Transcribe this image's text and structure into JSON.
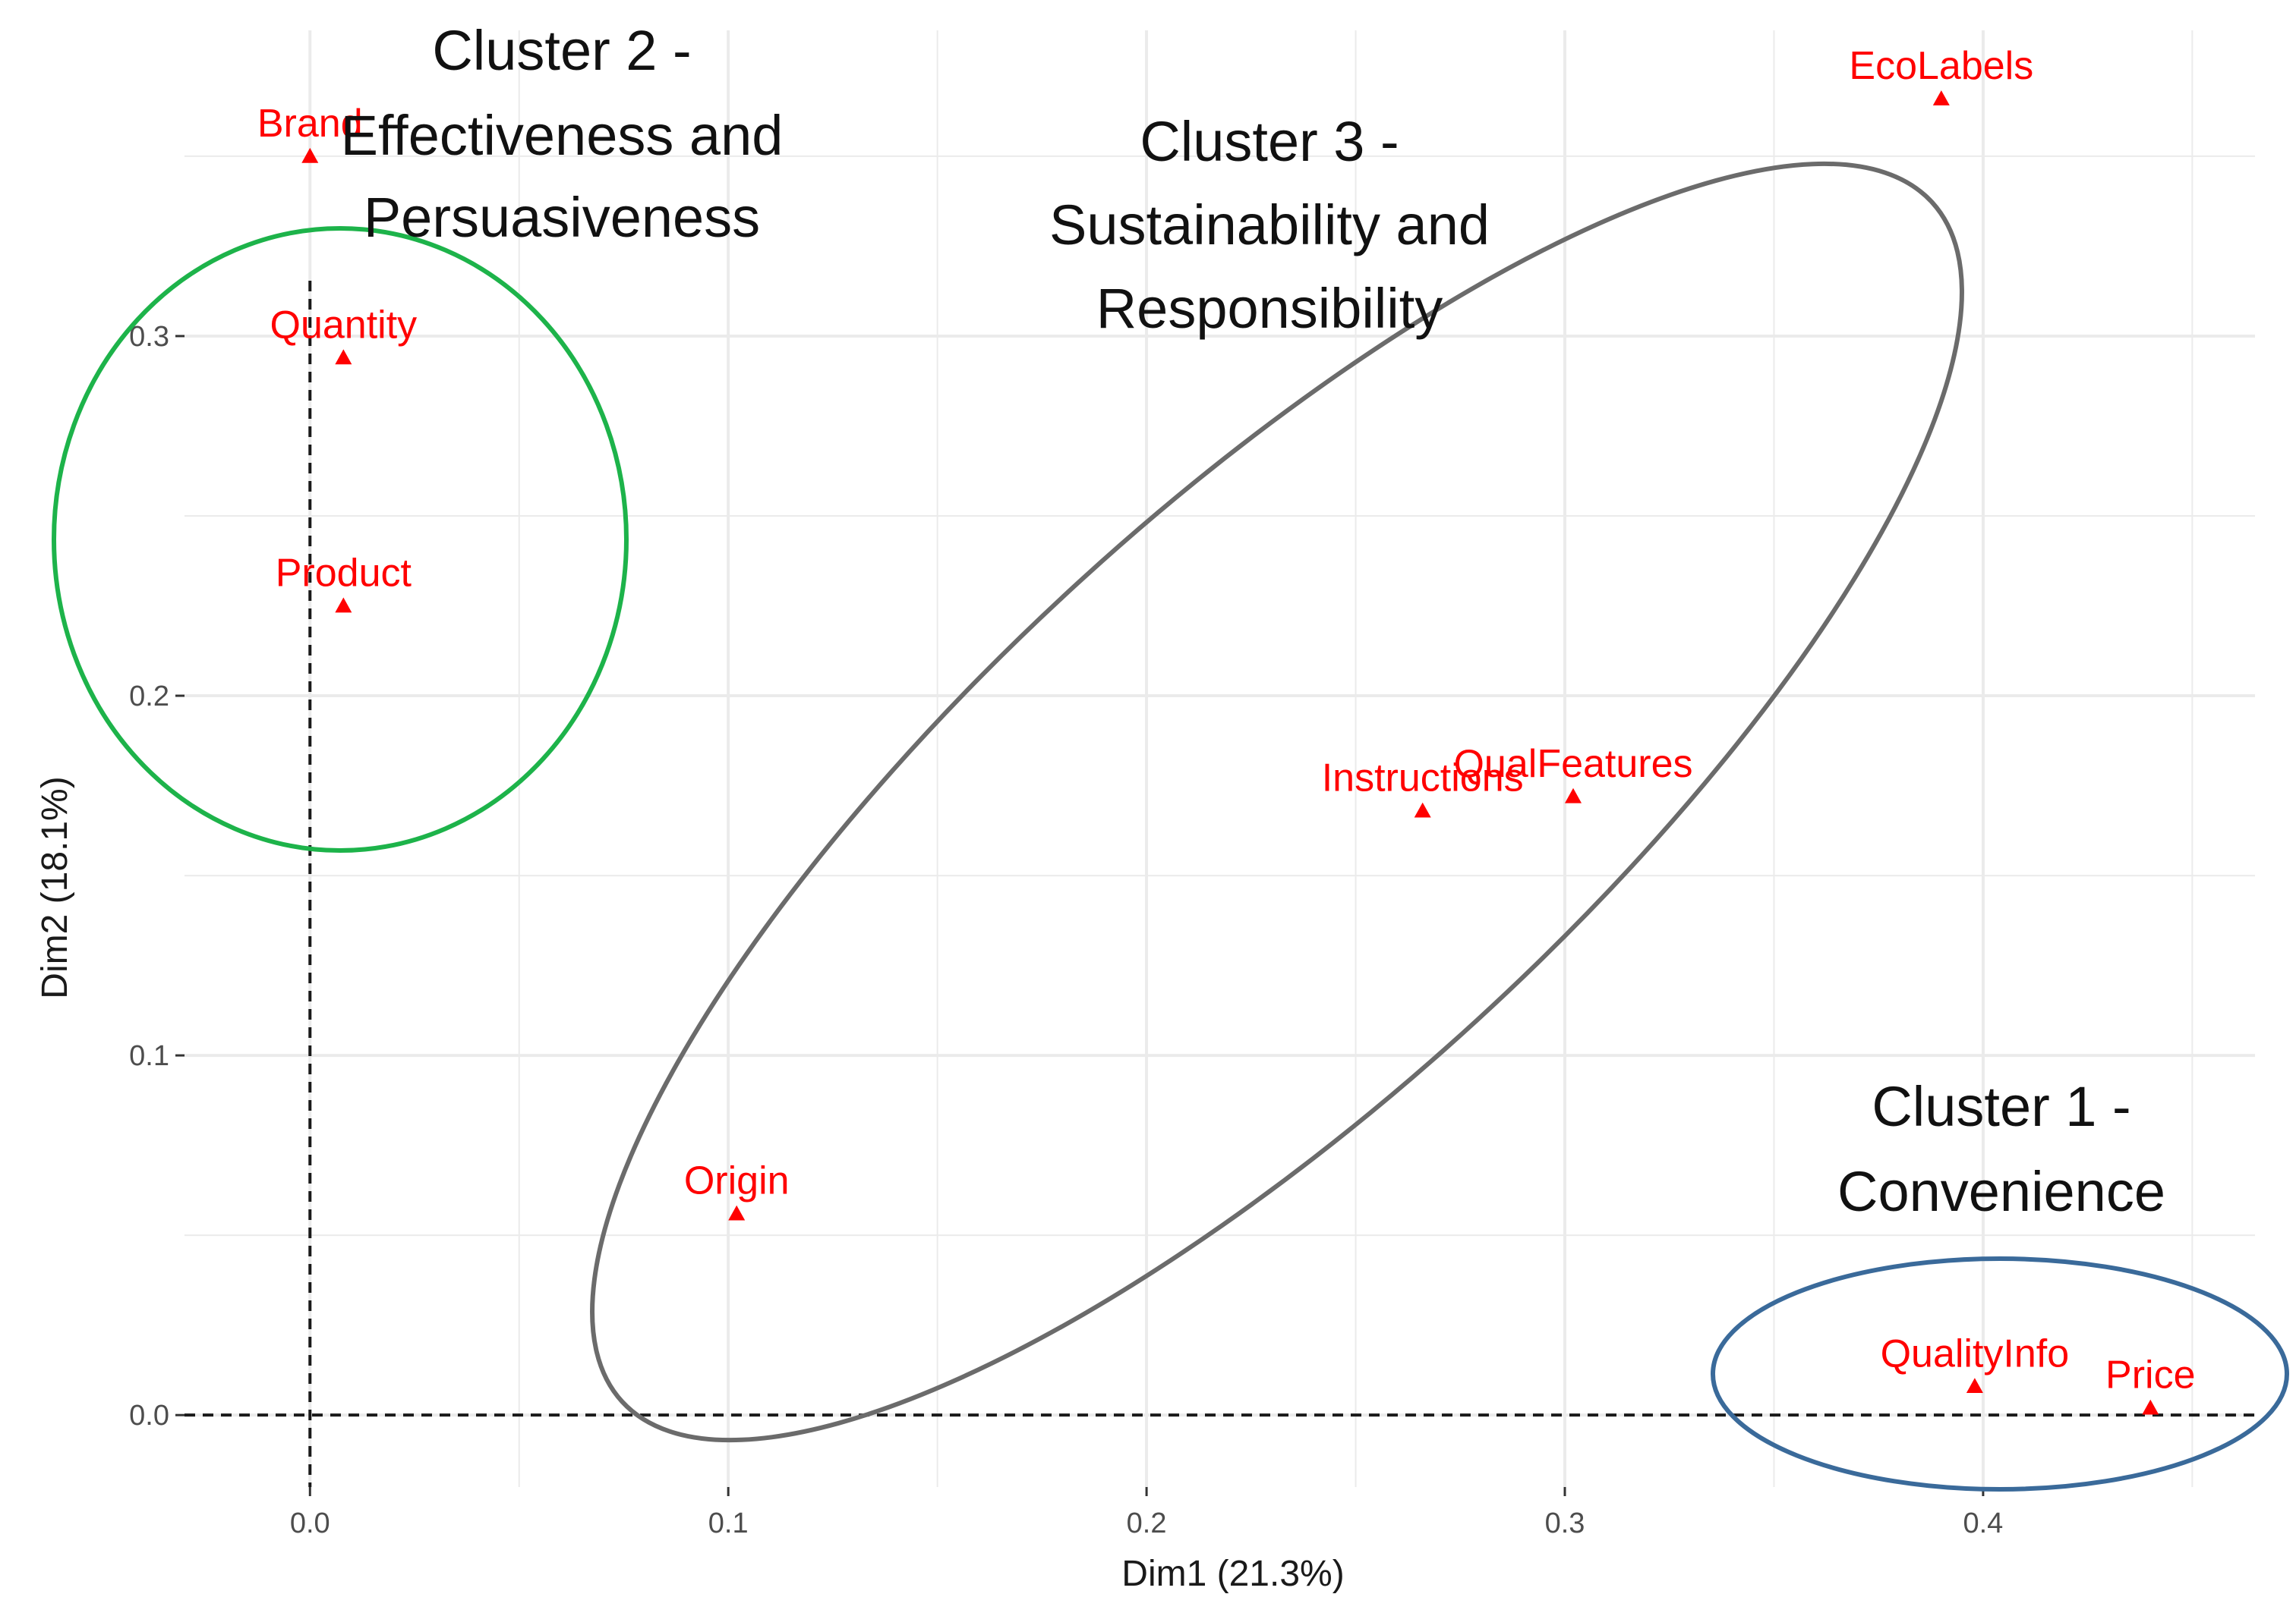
{
  "chart_data": {
    "type": "scatter",
    "xlabel": "Dim1 (21.3%)",
    "ylabel": "Dim2 (18.1%)",
    "xlim": [
      -0.03,
      0.465
    ],
    "ylim": [
      -0.02,
      0.385
    ],
    "x_ticks": [
      0.0,
      0.1,
      0.2,
      0.3,
      0.4
    ],
    "x_tick_labels": [
      "0.0",
      "0.1",
      "0.2",
      "0.3",
      "0.4"
    ],
    "y_ticks": [
      0.0,
      0.1,
      0.2,
      0.3
    ],
    "y_tick_labels": [
      "0.0",
      "0.1",
      "0.2",
      "0.3"
    ],
    "grid": true,
    "reference_lines": {
      "x": 0.0,
      "y": 0.0,
      "style": "dashed"
    },
    "point_color": "#ff0000",
    "marker": "triangle",
    "points": [
      {
        "label": "Brand",
        "x": 0.0,
        "y": 0.35
      },
      {
        "label": "Quantity",
        "x": 0.008,
        "y": 0.294
      },
      {
        "label": "Product",
        "x": 0.008,
        "y": 0.225
      },
      {
        "label": "EcoLabels",
        "x": 0.39,
        "y": 0.366
      },
      {
        "label": "QualFeatures",
        "x": 0.302,
        "y": 0.172
      },
      {
        "label": "Instructions",
        "x": 0.266,
        "y": 0.168
      },
      {
        "label": "Origin",
        "x": 0.102,
        "y": 0.056
      },
      {
        "label": "QualityInfo",
        "x": 0.398,
        "y": 0.008
      },
      {
        "label": "Price",
        "x": 0.44,
        "y": 0.002
      }
    ],
    "clusters": [
      {
        "title_lines": [
          "Cluster 2 -",
          "Effectiveness and",
          "Persuasiveness"
        ],
        "color": "#1db34a",
        "members": [
          "Brand",
          "Quantity",
          "Product"
        ]
      },
      {
        "title_lines": [
          "Cluster 3 -",
          "Sustainability and",
          "Responsibility"
        ],
        "color": "#6b6b6b",
        "members": [
          "EcoLabels",
          "QualFeatures",
          "Instructions",
          "Origin"
        ]
      },
      {
        "title_lines": [
          "Cluster 1 -",
          "Convenience"
        ],
        "color": "#3a6a9a",
        "members": [
          "QualityInfo",
          "Price"
        ]
      }
    ]
  }
}
